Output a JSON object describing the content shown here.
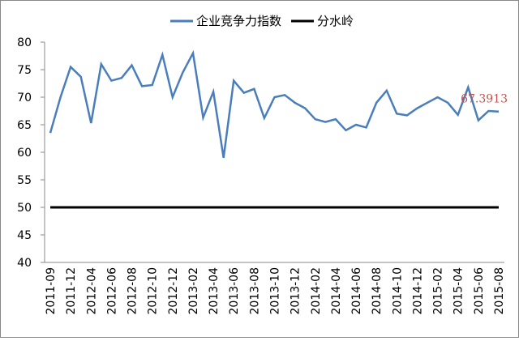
{
  "chart_data": {
    "type": "line",
    "categories": [
      "2011-09",
      null,
      "2011-12",
      null,
      "2012-04",
      null,
      "2012-06",
      null,
      "2012-08",
      null,
      "2012-10",
      null,
      "2012-12",
      null,
      "2013-02",
      null,
      "2013-04",
      null,
      "2013-06",
      null,
      "2013-08",
      null,
      "2013-10",
      null,
      "2013-12",
      null,
      "2014-02",
      null,
      "2014-04",
      null,
      "2014-06",
      null,
      "2014-08",
      null,
      "2014-10",
      null,
      "2014-12",
      null,
      "2015-02",
      null,
      "2015-04",
      null,
      "2015-06",
      null,
      "2015-08"
    ],
    "series": [
      {
        "name": "企业竞争力指数",
        "color": "#4a7ebb",
        "values": [
          63.5,
          70,
          75.5,
          73.7,
          65.3,
          76,
          73,
          73.5,
          75.8,
          72,
          72.2,
          77.7,
          70,
          74.5,
          78,
          66.3,
          71,
          59,
          73,
          70.8,
          71.5,
          66.2,
          70,
          70.4,
          69,
          68,
          66,
          65.5,
          66,
          64,
          65,
          64.5,
          69,
          71.2,
          67,
          66.7,
          68,
          69,
          70,
          69,
          66.8,
          71.8,
          65.8,
          67.5,
          67.3913
        ]
      },
      {
        "name": "分水岭",
        "color": "#000000",
        "values": [
          50,
          50,
          50,
          50,
          50,
          50,
          50,
          50,
          50,
          50,
          50,
          50,
          50,
          50,
          50,
          50,
          50,
          50,
          50,
          50,
          50,
          50,
          50,
          50,
          50,
          50,
          50,
          50,
          50,
          50,
          50,
          50,
          50,
          50,
          50,
          50,
          50,
          50,
          50,
          50,
          50,
          50,
          50,
          50,
          50
        ]
      }
    ],
    "label_color": "#c0504d",
    "ylim": [
      40,
      80
    ],
    "yticks": [
      40,
      45,
      50,
      55,
      60,
      65,
      70,
      75,
      80
    ],
    "legend": "top"
  }
}
